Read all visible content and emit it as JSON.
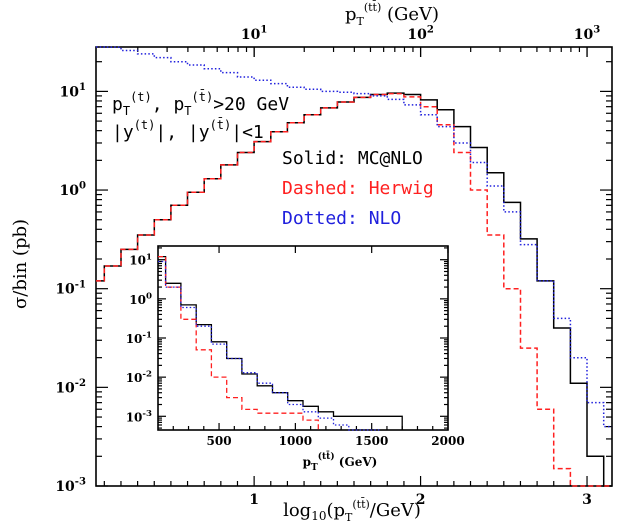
{
  "chart_data": {
    "type": "line",
    "xlabel_top": "p_T^(tt̄) (GeV)",
    "xlabel": "log10(p_T^(tt̄)/GeV)",
    "ylabel": "σ/bin (pb)",
    "xlim": [
      0.05,
      3.15
    ],
    "ylim_log": [
      -3,
      1.45
    ],
    "y_scale": "log",
    "x_ticks": [
      "1",
      "2",
      "3"
    ],
    "y_ticks": [
      "10^-3",
      "10^-2",
      "10^-1",
      "10^0",
      "10^1"
    ],
    "top_ticks": [
      "10^1",
      "10^2",
      "10^3"
    ],
    "annotations": [
      "p_T^(t), p_T^(t̄)>20 GeV",
      "|y^(t)|, |y^(t̄)|<1"
    ],
    "series": [
      {
        "name": "Solid: MC@NLO",
        "color": "#000000",
        "style": "solid",
        "x": [
          0.05,
          0.15,
          0.25,
          0.35,
          0.45,
          0.55,
          0.65,
          0.75,
          0.85,
          0.95,
          1.05,
          1.15,
          1.25,
          1.35,
          1.45,
          1.55,
          1.65,
          1.75,
          1.85,
          1.95,
          2.05,
          2.15,
          2.25,
          2.35,
          2.45,
          2.55,
          2.65,
          2.75,
          2.85,
          2.95,
          3.05,
          3.15
        ],
        "y": [
          0.12,
          0.17,
          0.25,
          0.35,
          0.5,
          0.7,
          0.95,
          1.3,
          1.8,
          2.4,
          3.1,
          3.9,
          4.8,
          5.8,
          6.8,
          7.8,
          8.7,
          9.3,
          9.6,
          9.3,
          8.2,
          6.5,
          4.4,
          2.7,
          1.5,
          0.75,
          0.32,
          0.12,
          0.04,
          0.011,
          0.002,
          0.001
        ]
      },
      {
        "name": "Dashed: Herwig",
        "color": "#ff2020",
        "style": "dashed",
        "x": [
          0.05,
          0.15,
          0.25,
          0.35,
          0.45,
          0.55,
          0.65,
          0.75,
          0.85,
          0.95,
          1.05,
          1.15,
          1.25,
          1.35,
          1.45,
          1.55,
          1.65,
          1.75,
          1.85,
          1.95,
          2.05,
          2.15,
          2.25,
          2.35,
          2.45,
          2.55,
          2.65,
          2.75,
          2.85,
          2.95,
          3.05,
          3.15
        ],
        "y": [
          0.12,
          0.17,
          0.25,
          0.35,
          0.5,
          0.7,
          0.95,
          1.3,
          1.8,
          2.4,
          3.1,
          3.9,
          4.8,
          5.8,
          6.8,
          7.8,
          8.7,
          9.3,
          9.5,
          8.8,
          7.0,
          4.6,
          2.4,
          1.0,
          0.35,
          0.1,
          0.025,
          0.006,
          0.0015,
          0.0008,
          0.0006,
          0.0005
        ]
      },
      {
        "name": "Dotted: NLO",
        "color": "#2020dd",
        "style": "dotted",
        "x": [
          0.05,
          0.15,
          0.25,
          0.35,
          0.45,
          0.55,
          0.65,
          0.75,
          0.85,
          0.95,
          1.05,
          1.15,
          1.25,
          1.35,
          1.45,
          1.55,
          1.65,
          1.75,
          1.85,
          1.95,
          2.05,
          2.15,
          2.25,
          2.35,
          2.45,
          2.55,
          2.65,
          2.75,
          2.85,
          2.95,
          3.05,
          3.15
        ],
        "y": [
          30,
          28,
          26,
          24,
          22,
          20,
          18.5,
          17,
          15.5,
          14,
          13,
          12,
          11,
          10.5,
          10,
          9.8,
          9.5,
          9.0,
          8.3,
          7.3,
          5.8,
          4.4,
          3.0,
          1.9,
          1.1,
          0.6,
          0.28,
          0.12,
          0.05,
          0.02,
          0.007,
          0.004
        ]
      }
    ],
    "inset": {
      "xlabel": "p_T^(tt̄) (GeV)",
      "xlim": [
        100,
        2000
      ],
      "ylim_log": [
        -3.35,
        1.35
      ],
      "x_ticks": [
        "500",
        "1000",
        "1500",
        "2000"
      ],
      "y_ticks": [
        "10^-3",
        "10^-2",
        "10^-1",
        "10^0",
        "10^1"
      ],
      "series": [
        {
          "name": "MC@NLO",
          "color": "#000000",
          "style": "solid",
          "x": [
            100,
            200,
            300,
            400,
            500,
            600,
            700,
            800,
            900,
            1000,
            1100,
            1200,
            1300,
            1400,
            1500,
            1600,
            1650
          ],
          "y": [
            12,
            2.5,
            0.7,
            0.22,
            0.08,
            0.03,
            0.012,
            0.006,
            0.004,
            0.0025,
            0.0018,
            0.0013,
            0.001,
            0.001,
            0.001,
            0.001,
            0.001
          ]
        },
        {
          "name": "Herwig",
          "color": "#ff2020",
          "style": "dashed",
          "x": [
            100,
            200,
            300,
            400,
            500,
            600,
            700,
            800,
            900,
            1000,
            1100
          ],
          "y": [
            12,
            2.0,
            0.3,
            0.05,
            0.01,
            0.003,
            0.0015,
            0.0012,
            0.0012,
            0.0012,
            0.0008
          ]
        },
        {
          "name": "NLO",
          "color": "#2020dd",
          "style": "dotted",
          "x": [
            100,
            200,
            300,
            400,
            500,
            600,
            700,
            800,
            900,
            1000,
            1100,
            1200,
            1300,
            1400,
            1500
          ],
          "y": [
            9,
            2.0,
            0.6,
            0.2,
            0.07,
            0.03,
            0.013,
            0.007,
            0.004,
            0.002,
            0.0013,
            0.0009,
            0.0006,
            0.0004,
            0.0003
          ]
        }
      ]
    }
  }
}
